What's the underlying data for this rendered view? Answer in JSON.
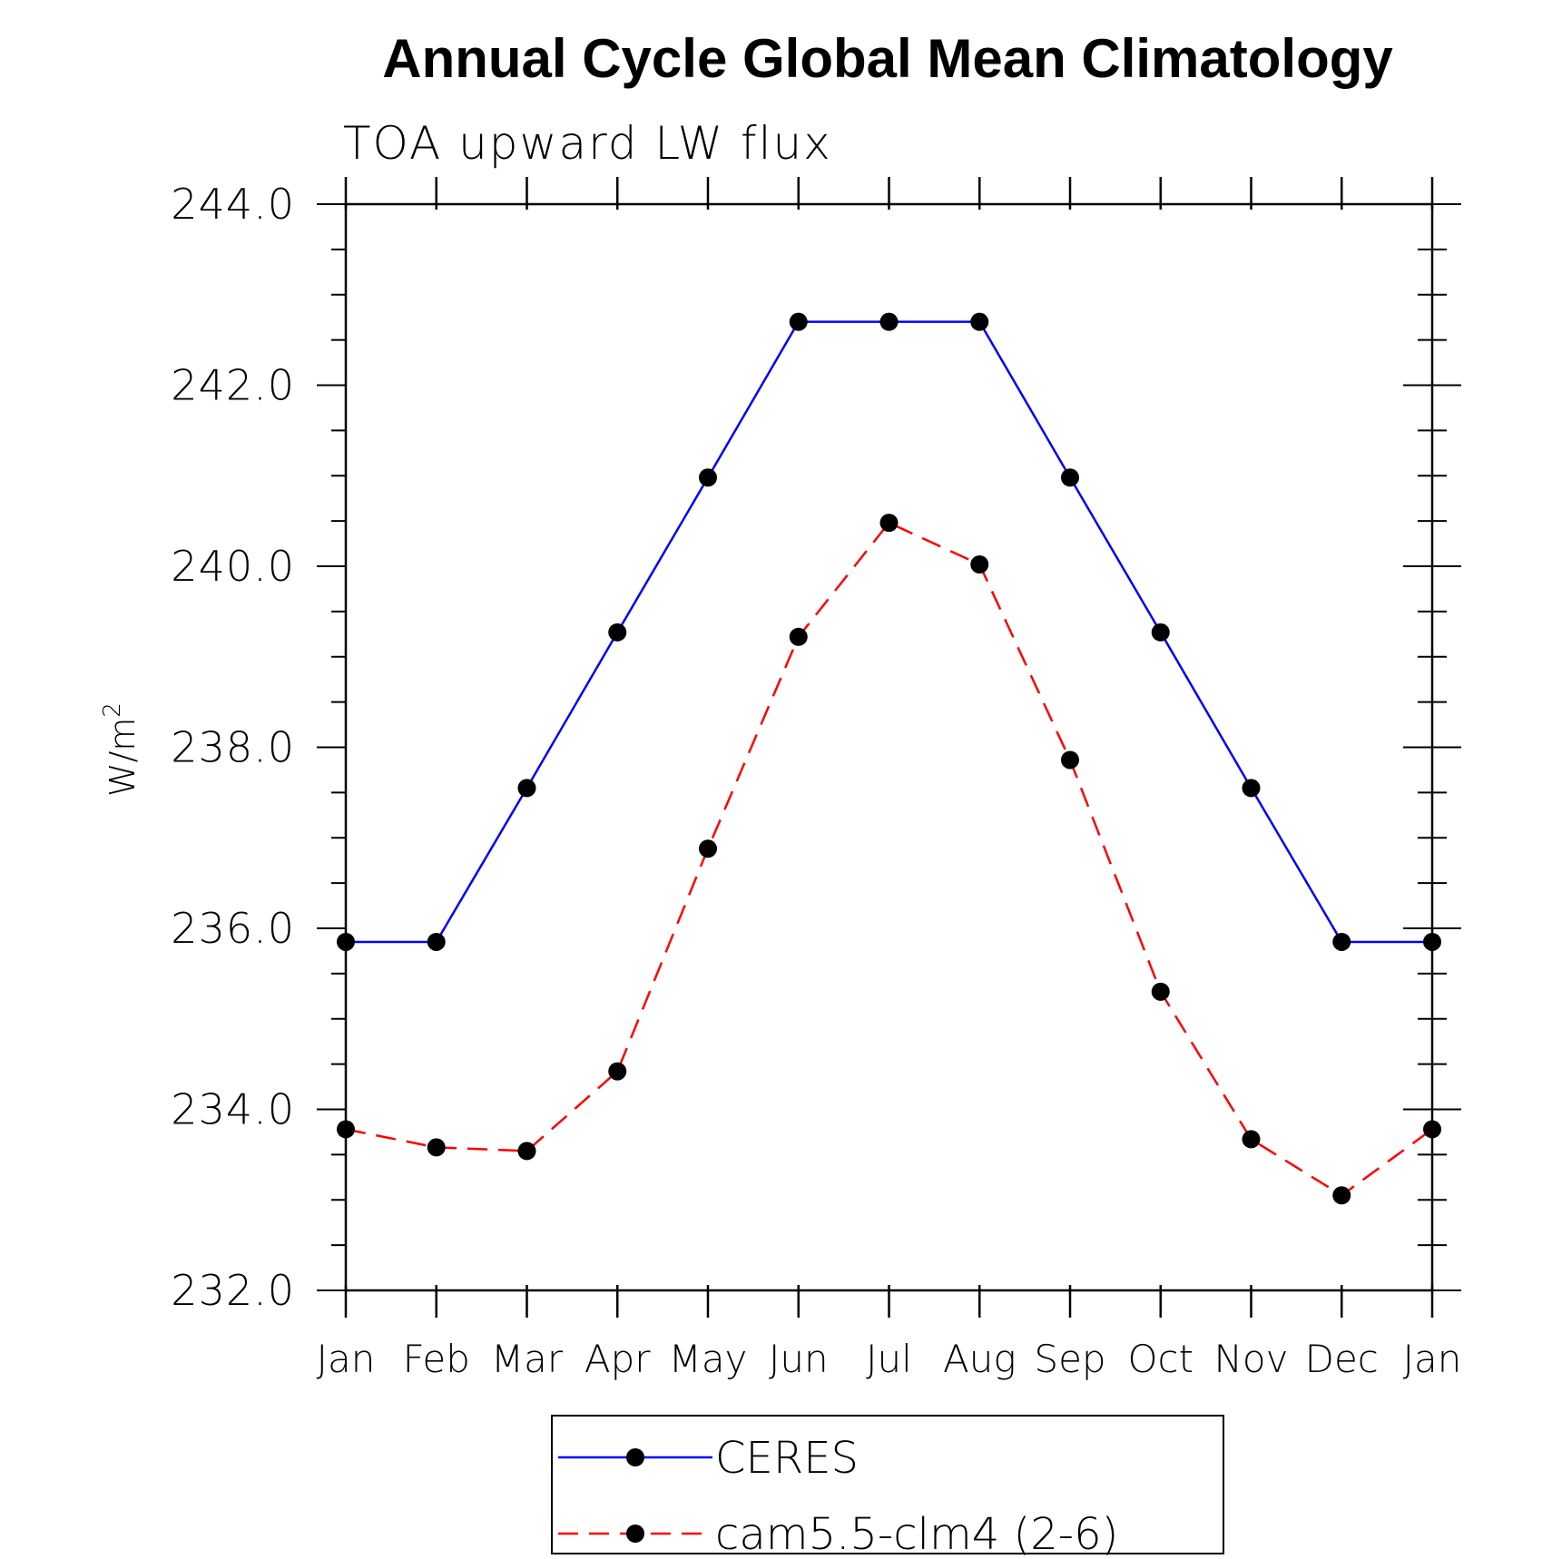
{
  "chart_data": {
    "type": "line",
    "title": "Annual Cycle Global Mean Climatology",
    "subtitle": "TOA upward LW flux",
    "ylabel": "W/m",
    "ylabel_sup": "2",
    "xlabel": "",
    "ylim": [
      232.0,
      244.0
    ],
    "ytick_values": [
      232.0,
      234.0,
      236.0,
      238.0,
      240.0,
      242.0,
      244.0
    ],
    "ytick_labels": [
      "232.0",
      "234.0",
      "236.0",
      "238.0",
      "240.0",
      "242.0",
      "244.0"
    ],
    "categories": [
      "Jan",
      "Feb",
      "Mar",
      "Apr",
      "May",
      "Jun",
      "Jul",
      "Aug",
      "Sep",
      "Oct",
      "Nov",
      "Dec",
      "Jan"
    ],
    "grid": false,
    "legend_position": "bottom",
    "series": [
      {
        "name": "CERES",
        "color": "#0000ff",
        "dashed": false,
        "marker": "filled-circle",
        "values": [
          235.85,
          235.85,
          237.55,
          239.27,
          240.98,
          242.7,
          242.7,
          242.7,
          240.98,
          239.27,
          237.55,
          235.85,
          235.85
        ]
      },
      {
        "name": "cam5.5-clm4 (2-6)",
        "color": "#ff0000",
        "dashed": true,
        "marker": "filled-circle",
        "values": [
          233.78,
          233.58,
          233.54,
          234.42,
          236.88,
          239.22,
          240.48,
          240.02,
          237.86,
          235.3,
          233.67,
          233.05,
          233.78
        ]
      }
    ]
  }
}
